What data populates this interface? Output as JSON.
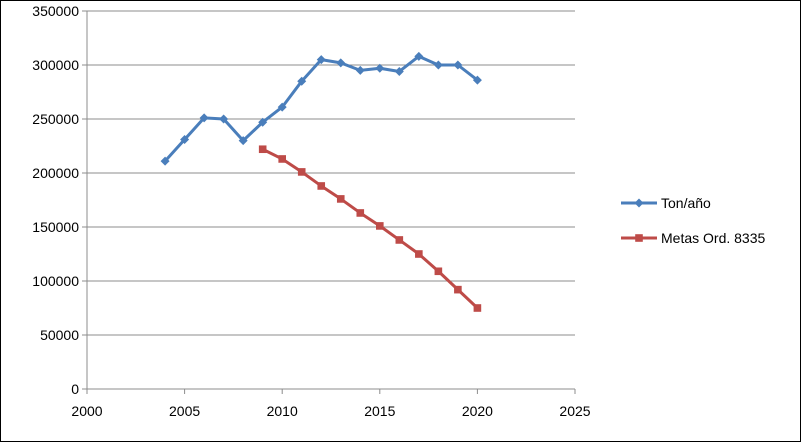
{
  "chart_data": {
    "type": "line",
    "title": "",
    "xlabel": "",
    "ylabel": "",
    "xlim": [
      2000,
      2025
    ],
    "ylim": [
      0,
      350000
    ],
    "xticks": [
      2000,
      2005,
      2010,
      2015,
      2020,
      2025
    ],
    "yticks": [
      0,
      50000,
      100000,
      150000,
      200000,
      250000,
      300000,
      350000
    ],
    "grid": "horizontal",
    "legend_position": "right",
    "series": [
      {
        "name": "Ton/año",
        "color": "#4a7ebb",
        "marker": "diamond",
        "x": [
          2004,
          2005,
          2006,
          2007,
          2008,
          2009,
          2010,
          2011,
          2012,
          2013,
          2014,
          2015,
          2016,
          2017,
          2018,
          2019,
          2020
        ],
        "y": [
          211000,
          231000,
          251000,
          250000,
          230000,
          247000,
          261000,
          285000,
          305000,
          302000,
          295000,
          297000,
          294000,
          308000,
          300000,
          300000,
          286000
        ]
      },
      {
        "name": "Metas Ord. 8335",
        "color": "#be4b48",
        "marker": "square",
        "x": [
          2009,
          2010,
          2011,
          2012,
          2013,
          2014,
          2015,
          2016,
          2017,
          2018,
          2019,
          2020
        ],
        "y": [
          222000,
          213000,
          201000,
          188000,
          176000,
          163000,
          151000,
          138000,
          125000,
          109000,
          92000,
          75000
        ]
      }
    ]
  }
}
